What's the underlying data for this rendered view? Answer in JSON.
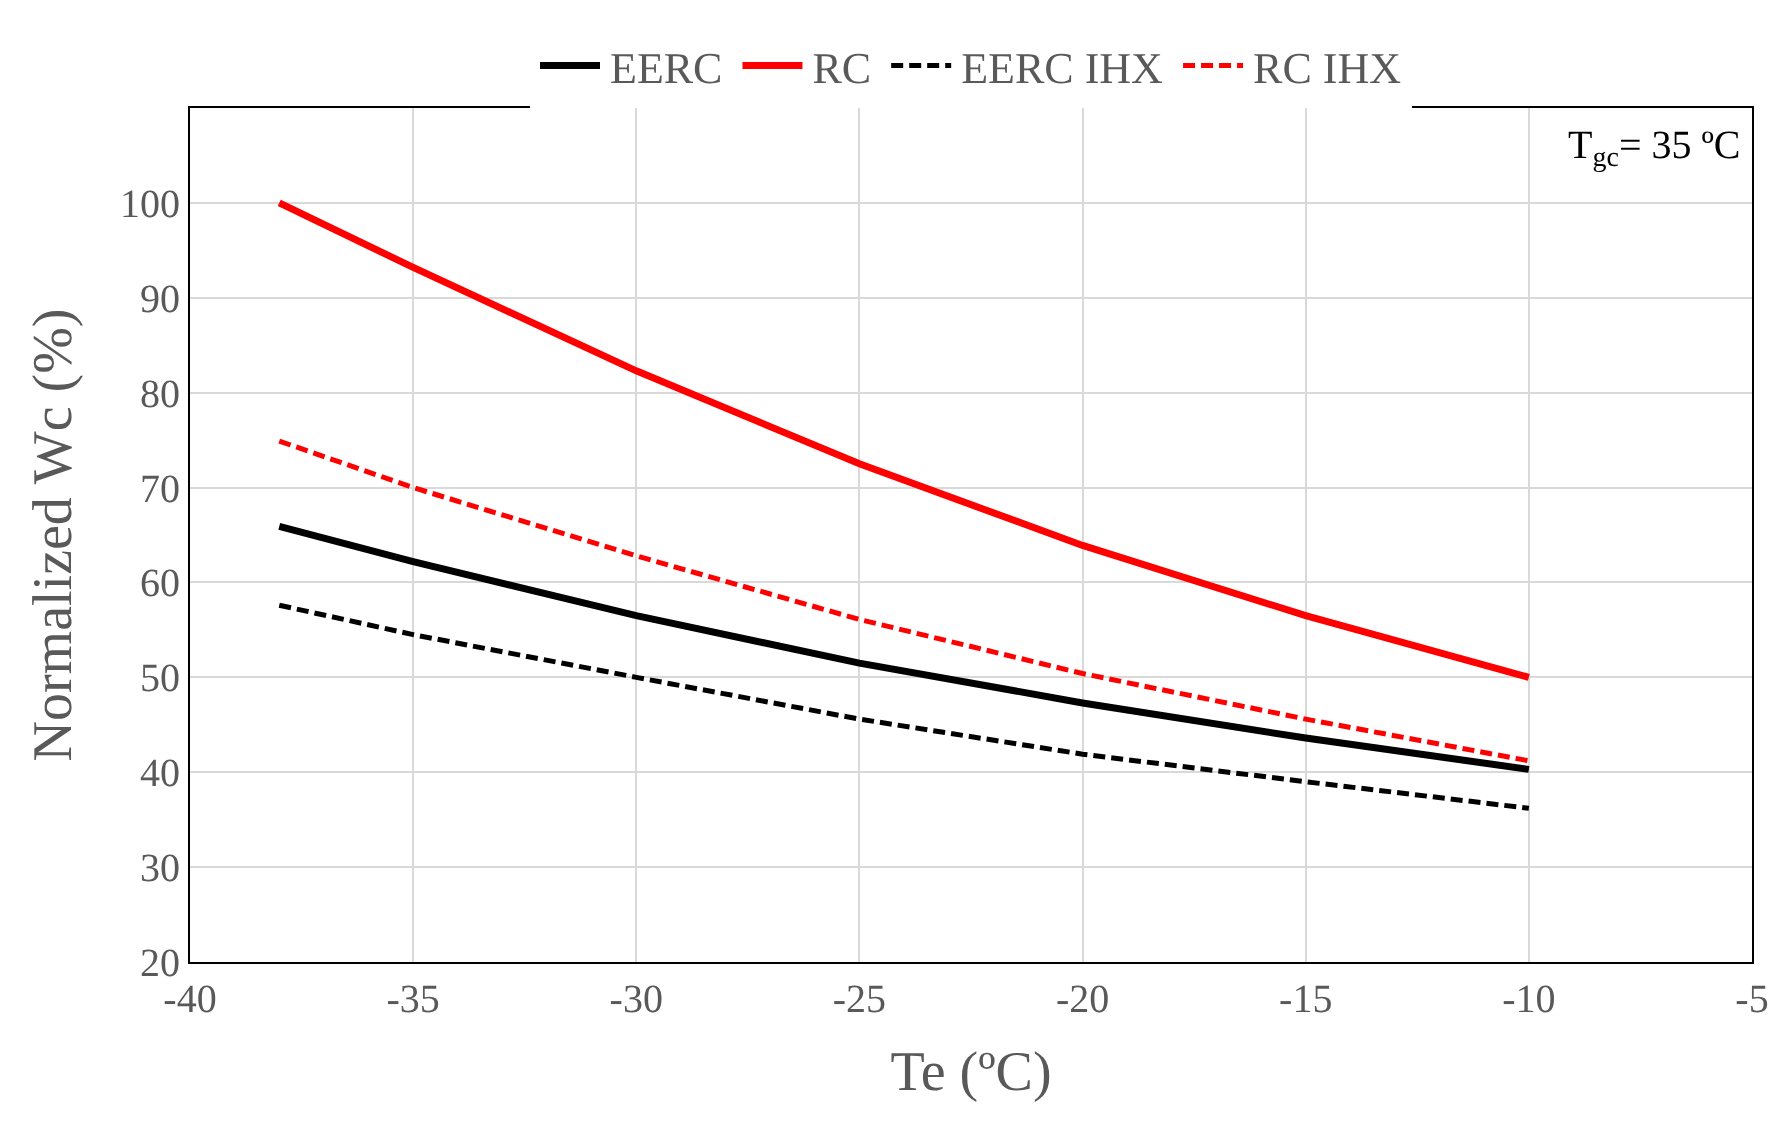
{
  "chart_data": {
    "type": "line",
    "xlabel": "Te (ºC)",
    "ylabel": "Normalized Wc (%)",
    "x": [
      -38,
      -35,
      -30,
      -25,
      -20,
      -15,
      -10
    ],
    "series": [
      {
        "name": "EERC",
        "color": "#000000",
        "line_style": "solid",
        "values": [
          65.9,
          62.2,
          56.5,
          51.5,
          47.3,
          43.6,
          40.3
        ]
      },
      {
        "name": "RC",
        "color": "#ff0000",
        "line_style": "solid",
        "values": [
          100,
          93.2,
          82.3,
          72.5,
          63.9,
          56.5,
          50
        ]
      },
      {
        "name": "EERC IHX",
        "color": "#000000",
        "line_style": "dashed",
        "values": [
          57.6,
          54.5,
          50,
          45.6,
          41.9,
          39,
          36.2
        ]
      },
      {
        "name": "RC IHX",
        "color": "#ff0000",
        "line_style": "dashed",
        "values": [
          74.9,
          70,
          62.8,
          56.1,
          50.4,
          45.6,
          41.2
        ]
      }
    ],
    "xlim": [
      -40,
      -5
    ],
    "xticks": [
      -40,
      -35,
      -30,
      -25,
      -20,
      -15,
      -10,
      -5
    ],
    "ylim": [
      20,
      110
    ],
    "yticks": [
      20,
      30,
      40,
      50,
      60,
      70,
      80,
      90,
      100
    ],
    "grid": true,
    "legend": "top",
    "marker": "none",
    "annotations": [
      "T$_{gc}$= 35 ºC"
    ]
  }
}
